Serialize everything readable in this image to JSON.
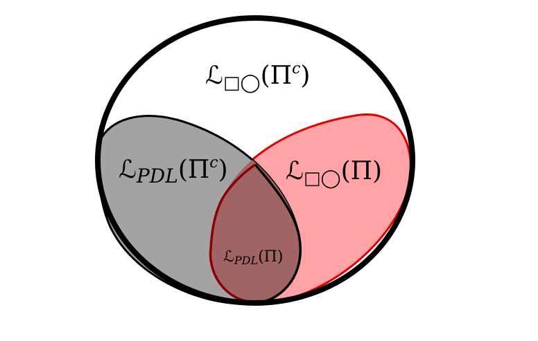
{
  "labels": {
    "outer": "ℒ□◯(Πᶜ)",
    "gray": "ℒPDL(Πᶜ)",
    "red": "ℒ□◯(Π)",
    "intersection": "ℒPDL(Π)"
  },
  "label_parts": {
    "outer": {
      "script": "ℒ",
      "sub": "□◯",
      "body": "(Π",
      "sup": "c",
      "close": ")"
    },
    "gray": {
      "script": "ℒ",
      "sub": "PDL",
      "body": "(Π",
      "sup": "c",
      "close": ")"
    },
    "red": {
      "script": "ℒ",
      "sub": "□◯",
      "body": "(Π)"
    },
    "intersection": {
      "script": "ℒ",
      "sub": "PDL",
      "body": "(Π)"
    }
  },
  "colors": {
    "outer_stroke": "#000000",
    "gray_fill": "#a3a3a3",
    "gray_stroke": "#000000",
    "red_fill": "#ffa3a6",
    "red_stroke": "#e00000",
    "intersection_fill": "#a06464",
    "intersection_stroke": "#8b0000"
  }
}
